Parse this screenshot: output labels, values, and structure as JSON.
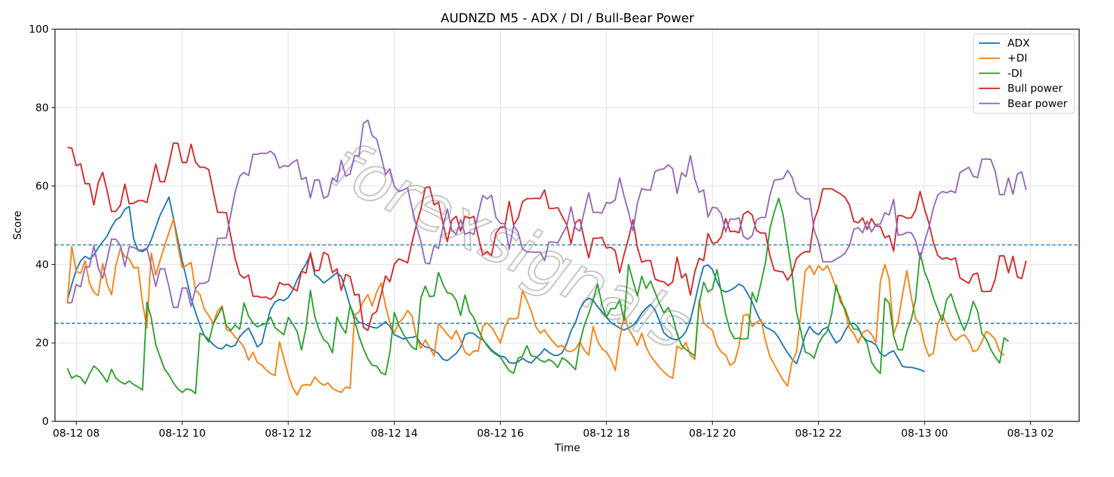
{
  "chart_data": {
    "type": "line",
    "title": "AUDNZD M5 - ADX / DI / Bull-Bear Power",
    "xlabel": "Time",
    "ylabel": "Score",
    "ylim": [
      0,
      100
    ],
    "xlim": [
      "08-12 07:36",
      "08-13 02:55"
    ],
    "x_start": "08-12 07:50",
    "x_step_minutes": 5,
    "x_ticks": [
      "08-12 08",
      "08-12 10",
      "08-12 12",
      "08-12 14",
      "08-12 16",
      "08-12 18",
      "08-12 20",
      "08-12 22",
      "08-13 00",
      "08-13 02"
    ],
    "y_ticks": [
      0,
      20,
      40,
      60,
      80,
      100
    ],
    "reference_lines": [
      25,
      45
    ],
    "grid": true,
    "legend_position": "top-right",
    "watermark": "forexsignals",
    "series": [
      {
        "name": "ADX",
        "color": "#1f77b4",
        "values": [
          30.8,
          34.9,
          38.6,
          40.9,
          42.1,
          41.4,
          42.4,
          44.3,
          45.8,
          47.2,
          49.6,
          51.4,
          52.1,
          54.1,
          54.8,
          46.5,
          43.6,
          43.3,
          44.0,
          46.3,
          49.5,
          52.6,
          54.9,
          57.2,
          51.8,
          46.4,
          40.9,
          36.2,
          31.3,
          27.8,
          24.6,
          21.8,
          20.9,
          19.6,
          18.7,
          18.5,
          19.6,
          19.0,
          19.4,
          21.6,
          22.8,
          23.8,
          21.5,
          19.0,
          19.9,
          24.5,
          28.6,
          30.4,
          31.1,
          30.8,
          31.6,
          33.4,
          36.1,
          38.3,
          40.1,
          42.5,
          37.4,
          36.5,
          35.3,
          36.1,
          37.0,
          37.9,
          36.9,
          33.3,
          29.4,
          26.9,
          25.2,
          25.0,
          24.4,
          24.0,
          23.8,
          24.5,
          25.4,
          24.2,
          22.1,
          21.6,
          21.0,
          21.3,
          21.4,
          21.7,
          19.8,
          19.0,
          18.7,
          18.0,
          17.3,
          15.8,
          15.5,
          16.4,
          17.3,
          18.9,
          22.1,
          22.6,
          22.4,
          21.4,
          20.8,
          19.6,
          18.2,
          17.4,
          16.6,
          16.4,
          15.0,
          14.8,
          15.2,
          16.1,
          15.3,
          14.9,
          16.1,
          17.1,
          18.5,
          17.6,
          16.9,
          16.8,
          17.5,
          19.8,
          23.1,
          25.2,
          28.6,
          30.6,
          31.4,
          30.9,
          29.2,
          28.0,
          26.6,
          25.2,
          24.5,
          23.8,
          23.3,
          23.8,
          24.5,
          25.8,
          27.6,
          28.9,
          29.8,
          28.4,
          25.6,
          22.6,
          21.6,
          21.0,
          20.8,
          21.5,
          22.9,
          25.8,
          30.4,
          35.4,
          39.5,
          39.9,
          38.7,
          35.7,
          33.5,
          33.0,
          33.4,
          34.1,
          35.0,
          34.4,
          32.5,
          30.4,
          27.7,
          25.4,
          24.0,
          23.5,
          22.8,
          21.3,
          19.3,
          17.5,
          15.9,
          14.7,
          17.9,
          21.9,
          24.2,
          22.8,
          22.1,
          23.5,
          24.0,
          21.9,
          20.0,
          20.8,
          23.1,
          24.8,
          25.1,
          23.9,
          21.6,
          20.6,
          20.3,
          19.5,
          17.3,
          16.6,
          17.5,
          18.0,
          16.1,
          14.0,
          13.8,
          13.8,
          13.5,
          13.2,
          12.7
        ]
      },
      {
        "name": "+DI",
        "color": "#ff7f0e",
        "values": [
          30.1,
          44.5,
          38.2,
          37.8,
          40.9,
          35.3,
          32.9,
          32.1,
          40.2,
          35.0,
          32.3,
          39.9,
          44.1,
          42.0,
          41.5,
          39.1,
          39.3,
          30.3,
          23.8,
          42.9,
          37.3,
          41.1,
          44.8,
          48.2,
          51.5,
          44.9,
          39.2,
          39.8,
          40.5,
          33.4,
          32.4,
          28.6,
          27.0,
          25.0,
          28.1,
          29.4,
          23.4,
          22.9,
          21.5,
          20.3,
          18.9,
          15.6,
          17.6,
          15.0,
          14.4,
          13.1,
          12.2,
          11.7,
          20.3,
          16.1,
          11.8,
          8.6,
          6.7,
          9.1,
          9.4,
          9.2,
          11.3,
          10.0,
          9.2,
          9.8,
          8.4,
          7.8,
          7.4,
          8.8,
          8.4,
          27.1,
          27.9,
          30.6,
          32.3,
          29.4,
          33.0,
          35.3,
          29.5,
          25.1,
          22.6,
          25.2,
          26.3,
          28.3,
          26.9,
          21.5,
          18.6,
          20.8,
          18.8,
          16.7,
          24.9,
          23.7,
          22.2,
          21.0,
          23.2,
          20.6,
          17.7,
          16.8,
          18.0,
          17.9,
          24.2,
          25.1,
          24.0,
          22.1,
          20.0,
          24.1,
          26.3,
          26.1,
          26.4,
          33.3,
          30.8,
          28.0,
          24.2,
          22.5,
          23.3,
          21.6,
          20.2,
          19.0,
          19.4,
          18.0,
          17.8,
          18.5,
          20.3,
          18.1,
          16.9,
          24.2,
          20.5,
          18.5,
          17.7,
          15.8,
          13.0,
          21.1,
          27.3,
          23.6,
          21.7,
          19.4,
          22.5,
          18.9,
          16.7,
          15.2,
          13.8,
          12.6,
          11.6,
          11.0,
          19.2,
          18.4,
          20.1,
          16.9,
          15.8,
          30.9,
          25.2,
          24.1,
          23.2,
          19.4,
          17.7,
          16.9,
          14.3,
          15.1,
          19.2,
          27.0,
          27.3,
          24.2,
          25.3,
          25.9,
          20.6,
          16.5,
          14.5,
          12.4,
          10.5,
          9.0,
          15.1,
          17.6,
          27.5,
          38.3,
          39.7,
          37.5,
          39.7,
          38.5,
          39.7,
          37.1,
          33.7,
          31.7,
          27.9,
          23.8,
          22.4,
          20.0,
          22.6,
          23.3,
          22.2,
          20.1,
          35.6,
          40.0,
          36.3,
          22.3,
          25.4,
          32.3,
          38.4,
          31.6,
          26.1,
          24.7,
          19.6,
          16.6,
          17.4,
          24.9,
          27.2,
          24.8,
          22.0,
          20.6,
          21.6,
          22.1,
          20.6,
          17.8,
          18.2,
          20.4,
          23.0,
          22.1,
          20.9,
          17.8,
          16.9
        ]
      },
      {
        "name": "-DI",
        "color": "#2ca02c",
        "values": [
          13.5,
          11.0,
          11.7,
          11.2,
          9.6,
          12.1,
          14.1,
          13.2,
          11.7,
          10.0,
          13.3,
          11.0,
          10.1,
          9.5,
          10.3,
          9.4,
          8.8,
          8.0,
          30.4,
          26.3,
          19.6,
          16.4,
          13.3,
          11.8,
          9.8,
          8.3,
          7.4,
          8.3,
          8.0,
          7.1,
          22.5,
          21.9,
          20.2,
          24.8,
          26.9,
          29.1,
          24.4,
          23.2,
          24.6,
          23.5,
          30.2,
          26.8,
          25.2,
          24.1,
          24.6,
          25.0,
          26.6,
          23.9,
          23.0,
          22.1,
          26.5,
          24.8,
          22.9,
          18.2,
          23.9,
          33.4,
          26.8,
          23.2,
          20.9,
          19.9,
          17.5,
          26.6,
          24.2,
          22.5,
          29.7,
          25.7,
          21.7,
          18.6,
          16.0,
          14.3,
          14.1,
          12.4,
          11.9,
          17.6,
          27.8,
          24.6,
          22.3,
          20.5,
          18.9,
          18.3,
          31.4,
          34.5,
          31.8,
          32.0,
          38.0,
          34.9,
          32.8,
          32.5,
          30.9,
          27.0,
          32.2,
          28.0,
          26.4,
          23.5,
          21.0,
          19.3,
          17.9,
          17.1,
          16.4,
          14.6,
          12.9,
          12.3,
          16.1,
          16.6,
          19.3,
          16.7,
          16.5,
          15.6,
          15.1,
          15.8,
          15.1,
          13.8,
          16.2,
          15.5,
          14.4,
          13.2,
          20.1,
          24.5,
          27.5,
          31.0,
          35.0,
          29.8,
          26.6,
          28.7,
          28.8,
          30.9,
          25.8,
          40.0,
          35.8,
          32.0,
          37.0,
          33.9,
          35.8,
          32.9,
          30.1,
          27.7,
          29.0,
          26.6,
          22.2,
          19.4,
          18.3,
          17.5,
          16.7,
          30.0,
          35.5,
          33.0,
          33.8,
          38.7,
          33.0,
          27.3,
          23.0,
          21.1,
          21.2,
          21.0,
          21.1,
          32.9,
          30.4,
          35.4,
          40.5,
          49.1,
          53.4,
          56.9,
          52.6,
          45.2,
          38.0,
          27.9,
          23.1,
          17.7,
          17.2,
          16.1,
          19.8,
          21.7,
          23.0,
          27.5,
          34.8,
          30.4,
          28.8,
          25.5,
          23.5,
          23.5,
          21.7,
          19.9,
          15.1,
          13.4,
          12.2,
          31.4,
          30.2,
          21.8,
          18.3,
          18.2,
          22.9,
          26.0,
          31.3,
          43.0,
          38.1,
          35.4,
          31.5,
          28.5,
          25.6,
          31.0,
          32.5,
          28.9,
          25.8,
          23.2,
          26.1,
          30.6,
          28.2,
          22.4,
          21.0,
          18.3,
          16.4,
          14.9,
          21.3,
          20.4
        ]
      },
      {
        "name": "Bull power",
        "color": "#d62728",
        "values": [
          69.8,
          69.7,
          65.2,
          65.7,
          60.6,
          60.6,
          55.2,
          60.9,
          63.5,
          58.7,
          53.5,
          53.6,
          55.1,
          60.5,
          55.5,
          55.6,
          56.3,
          56.3,
          55.8,
          60.5,
          65.6,
          61.1,
          61.1,
          65.7,
          71.0,
          70.9,
          66.0,
          66.0,
          70.7,
          66.1,
          64.8,
          64.8,
          64.2,
          58.7,
          53.3,
          53.3,
          53.2,
          47.1,
          41.4,
          37.5,
          36.5,
          37.3,
          31.9,
          31.9,
          31.6,
          31.7,
          31.1,
          32.2,
          35.4,
          34.8,
          35.0,
          33.9,
          33.3,
          38.3,
          37.8,
          43.0,
          38.4,
          38.5,
          43.1,
          42.5,
          37.9,
          38.9,
          33.4,
          37.5,
          36.9,
          32.2,
          32.4,
          24.0,
          23.2,
          27.2,
          28.0,
          32.3,
          37.1,
          35.6,
          40.1,
          41.4,
          41.0,
          40.4,
          45.7,
          50.2,
          54.1,
          59.6,
          59.8,
          55.2,
          55.9,
          50.4,
          45.8,
          51.3,
          52.3,
          48.5,
          52.3,
          51.8,
          52.3,
          47.1,
          42.4,
          43.3,
          42.3,
          48.0,
          49.5,
          49.6,
          56.1,
          50.1,
          51.8,
          56.0,
          56.8,
          56.8,
          56.9,
          56.8,
          59.0,
          54.3,
          54.3,
          54.5,
          52.3,
          50.2,
          45.3,
          50.7,
          51.5,
          46.4,
          41.7,
          46.7,
          46.7,
          46.9,
          44.2,
          44.4,
          43.5,
          37.9,
          42.6,
          46.6,
          51.4,
          44.4,
          40.6,
          41.0,
          41.0,
          36.3,
          35.8,
          35.6,
          34.6,
          35.6,
          41.9,
          36.6,
          37.6,
          32.2,
          38.1,
          41.6,
          41.0,
          47.9,
          45.4,
          45.6,
          47.1,
          51.7,
          48.4,
          48.5,
          48.1,
          52.8,
          53.6,
          52.6,
          48.6,
          48.0,
          48.0,
          42.3,
          38.5,
          38.3,
          38.1,
          36.0,
          37.7,
          41.5,
          42.6,
          43.3,
          43.2,
          51.2,
          54.3,
          59.3,
          59.3,
          59.3,
          58.6,
          58.0,
          57.1,
          55.2,
          51.0,
          50.6,
          51.9,
          48.9,
          51.7,
          49.8,
          49.7,
          46.8,
          47.4,
          43.4,
          52.5,
          52.4,
          51.8,
          51.9,
          53.9,
          58.6,
          54.2,
          50.5,
          45.6,
          42.3,
          41.4,
          41.7,
          41.2,
          41.7,
          36.6,
          35.9,
          35.2,
          37.5,
          37.8,
          33.1,
          33.1,
          33.2,
          36.3,
          42.2,
          42.2,
          37.9,
          42.1,
          36.9,
          36.4,
          41.0
        ]
      },
      {
        "name": "Bear power",
        "color": "#9467bd",
        "values": [
          30.2,
          30.3,
          34.9,
          34.3,
          39.4,
          39.4,
          44.8,
          39.1,
          36.5,
          41.3,
          46.5,
          46.4,
          44.9,
          39.5,
          44.5,
          44.4,
          43.7,
          43.7,
          44.2,
          39.5,
          34.4,
          38.9,
          38.9,
          34.3,
          29.0,
          29.1,
          34.0,
          34.0,
          29.3,
          33.9,
          35.2,
          35.2,
          35.8,
          41.3,
          46.7,
          46.7,
          46.8,
          52.9,
          58.6,
          62.5,
          63.5,
          62.7,
          68.1,
          68.1,
          68.4,
          68.3,
          68.9,
          67.8,
          64.6,
          65.2,
          65.0,
          66.1,
          66.7,
          61.7,
          62.2,
          57.0,
          61.6,
          61.5,
          56.9,
          57.5,
          62.1,
          61.1,
          66.6,
          62.5,
          63.1,
          67.8,
          67.6,
          76.0,
          76.8,
          72.8,
          72.0,
          67.7,
          62.9,
          64.4,
          59.9,
          58.6,
          59.0,
          59.6,
          54.3,
          49.8,
          45.9,
          40.4,
          40.2,
          44.8,
          44.1,
          49.6,
          54.2,
          48.7,
          47.7,
          51.5,
          47.7,
          48.2,
          47.7,
          52.9,
          57.6,
          56.7,
          57.7,
          52.0,
          50.5,
          50.4,
          43.9,
          49.9,
          48.2,
          44.0,
          43.2,
          43.2,
          43.1,
          43.2,
          41.0,
          45.7,
          45.7,
          45.5,
          47.7,
          49.8,
          54.7,
          49.3,
          48.5,
          53.6,
          58.3,
          53.3,
          53.3,
          53.1,
          55.8,
          55.6,
          56.5,
          62.1,
          57.4,
          53.4,
          48.6,
          55.6,
          59.4,
          59.0,
          59.0,
          63.7,
          64.2,
          64.4,
          65.4,
          64.4,
          58.1,
          63.4,
          62.4,
          67.8,
          61.9,
          58.4,
          59.0,
          52.1,
          54.6,
          54.4,
          52.9,
          48.3,
          51.6,
          51.5,
          51.9,
          47.2,
          46.4,
          47.4,
          51.4,
          52.0,
          52.0,
          57.7,
          61.5,
          61.7,
          61.9,
          64.0,
          62.3,
          58.5,
          57.4,
          56.7,
          56.8,
          48.8,
          45.7,
          40.7,
          40.7,
          40.7,
          41.4,
          42.0,
          42.9,
          44.8,
          49.0,
          49.4,
          48.1,
          51.1,
          48.3,
          50.2,
          50.3,
          53.2,
          52.6,
          56.6,
          47.5,
          47.6,
          48.2,
          48.1,
          46.1,
          41.4,
          45.8,
          49.5,
          54.4,
          57.7,
          58.6,
          58.3,
          58.8,
          58.3,
          63.4,
          64.1,
          64.8,
          62.5,
          62.2,
          66.9,
          66.9,
          66.8,
          63.7,
          57.8,
          57.8,
          62.1,
          57.9,
          63.1,
          63.6,
          59.0
        ]
      }
    ]
  }
}
